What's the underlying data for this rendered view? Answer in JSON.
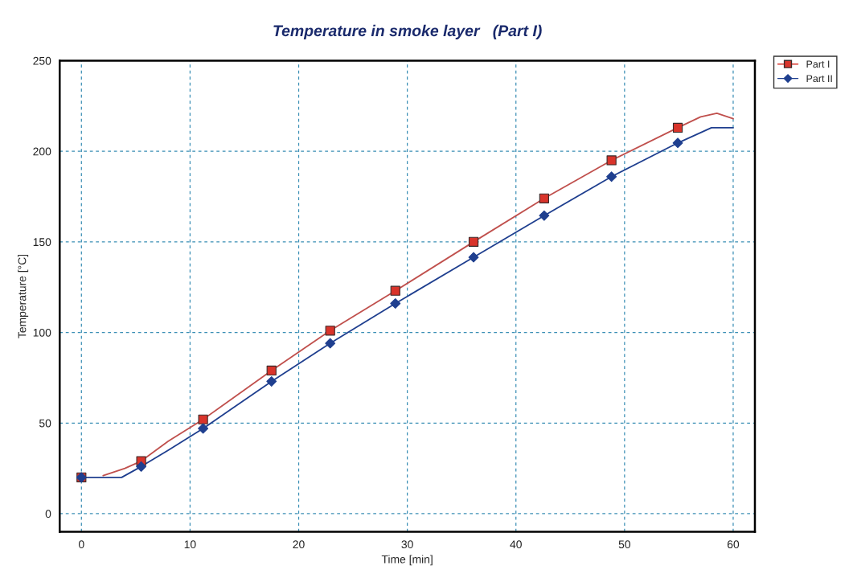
{
  "chart_data": {
    "type": "line",
    "title": "Temperature in smoke layer   (Part I)",
    "xlabel": "Time [min]",
    "ylabel": "Temperature [°C]",
    "xlim": [
      -2,
      62
    ],
    "xticks": [
      0,
      10,
      20,
      30,
      40,
      50,
      60
    ],
    "ylim": [
      -10,
      250
    ],
    "yticks": [
      0,
      50,
      100,
      150,
      200,
      250
    ],
    "grid": true,
    "legend": "top right",
    "series": [
      {
        "color": "#c0504d",
        "marker": "none",
        "x": [
          2,
          4,
          5.5,
          8,
          11.2,
          17.5,
          22.9,
          28.9,
          36.1,
          42.6,
          48.8,
          54.9,
          57,
          58.5,
          60
        ],
        "values": [
          21,
          25,
          29,
          40,
          52,
          79,
          101,
          123,
          150,
          174,
          195,
          213,
          219,
          221,
          218
        ]
      },
      {
        "color": "#1f3f8f",
        "marker": "none",
        "x": [
          0,
          3.7,
          5.5,
          8,
          11.2,
          17.5,
          22.9,
          28.9,
          36.1,
          42.6,
          48.8,
          54.9,
          58,
          60
        ],
        "values": [
          20,
          20,
          26,
          35,
          47,
          73,
          94,
          116,
          141.5,
          164.5,
          186,
          204.6,
          213,
          213
        ]
      },
      {
        "type": "scatter",
        "name": "Part I",
        "color": "#d9342b",
        "marker": "square",
        "x": [
          0,
          5.5,
          11.2,
          17.5,
          22.9,
          28.9,
          36.1,
          42.6,
          48.8,
          54.9
        ],
        "values": [
          20,
          29,
          52,
          79,
          101,
          123,
          150,
          174,
          195,
          213
        ]
      },
      {
        "type": "scatter",
        "name": "Part II",
        "color": "#1f3f8f",
        "marker": "diamond",
        "x": [
          0,
          5.5,
          11.2,
          17.5,
          22.9,
          28.9,
          36.1,
          42.6,
          48.8,
          54.9
        ],
        "values": [
          20,
          26,
          47,
          73,
          94,
          116,
          141.5,
          164.5,
          186,
          204.6
        ]
      }
    ]
  }
}
